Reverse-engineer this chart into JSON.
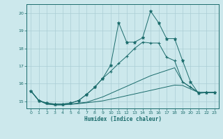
{
  "bg_color": "#cce8ec",
  "grid_color": "#aacdd4",
  "line_color": "#1a6b6b",
  "xlabel": "Humidex (Indice chaleur)",
  "xlim": [
    -0.5,
    23.5
  ],
  "ylim": [
    14.6,
    20.5
  ],
  "yticks": [
    15,
    16,
    17,
    18,
    19,
    20
  ],
  "xticks": [
    0,
    1,
    2,
    3,
    4,
    5,
    6,
    7,
    8,
    9,
    10,
    11,
    12,
    13,
    14,
    15,
    16,
    17,
    18,
    19,
    20,
    21,
    22,
    23
  ],
  "series": {
    "peak": {
      "x": [
        0,
        1,
        2,
        3,
        4,
        5,
        6,
        7,
        8,
        9,
        10,
        11,
        12,
        13,
        14,
        15,
        16,
        17,
        18,
        19,
        20,
        21,
        22,
        23
      ],
      "y": [
        15.6,
        15.05,
        14.9,
        14.85,
        14.85,
        14.9,
        15.05,
        15.4,
        15.8,
        16.3,
        17.05,
        19.45,
        18.35,
        18.35,
        18.6,
        20.1,
        19.45,
        18.55,
        18.55,
        17.3,
        16.1,
        15.45,
        15.5,
        15.5
      ],
      "marker": "*"
    },
    "main": {
      "x": [
        0,
        1,
        2,
        3,
        4,
        5,
        6,
        7,
        8,
        9,
        10,
        11,
        12,
        13,
        14,
        15,
        16,
        17,
        18,
        19,
        20,
        21,
        22,
        23
      ],
      "y": [
        15.6,
        15.05,
        14.9,
        14.85,
        14.85,
        14.9,
        15.05,
        15.4,
        15.8,
        16.3,
        16.7,
        17.15,
        17.55,
        18.0,
        18.35,
        18.3,
        18.3,
        17.5,
        17.3,
        16.1,
        15.8,
        15.5,
        15.5,
        15.5
      ],
      "marker": "+"
    },
    "upper_low": {
      "x": [
        0,
        1,
        2,
        3,
        4,
        5,
        6,
        7,
        8,
        9,
        10,
        11,
        12,
        13,
        14,
        15,
        16,
        17,
        18,
        19,
        20,
        21,
        22,
        23
      ],
      "y": [
        15.6,
        15.05,
        14.85,
        14.8,
        14.8,
        14.85,
        14.9,
        14.95,
        15.1,
        15.25,
        15.45,
        15.65,
        15.85,
        16.05,
        16.25,
        16.45,
        16.6,
        16.75,
        16.9,
        16.1,
        15.8,
        15.5,
        15.5,
        15.5
      ],
      "marker": null
    },
    "lower_low": {
      "x": [
        0,
        1,
        2,
        3,
        4,
        5,
        6,
        7,
        8,
        9,
        10,
        11,
        12,
        13,
        14,
        15,
        16,
        17,
        18,
        19,
        20,
        21,
        22,
        23
      ],
      "y": [
        15.6,
        15.05,
        14.85,
        14.8,
        14.8,
        14.83,
        14.87,
        14.92,
        14.97,
        15.03,
        15.12,
        15.22,
        15.32,
        15.42,
        15.52,
        15.62,
        15.72,
        15.82,
        15.92,
        15.9,
        15.7,
        15.5,
        15.5,
        15.5
      ],
      "marker": null
    }
  }
}
